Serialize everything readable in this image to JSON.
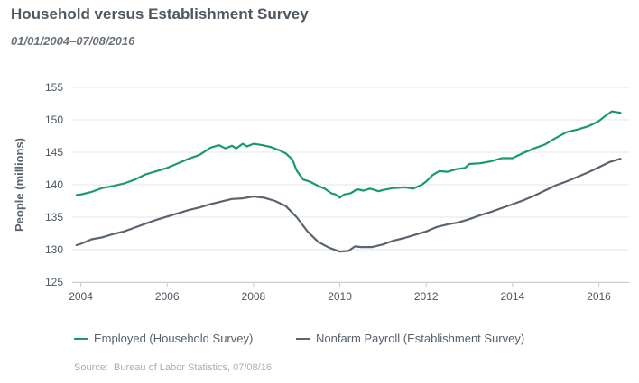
{
  "header": {
    "title": "Household versus Establishment Survey",
    "subtitle": "01/01/2004–07/08/2016"
  },
  "source": {
    "label": "Source:",
    "text": "Bureau of Labor Statistics, 07/08/16"
  },
  "chart_data": {
    "type": "line",
    "title": "Household versus Establishment Survey",
    "subtitle": "01/01/2004–07/08/2016",
    "ylabel": "People (millions)",
    "xlabel": "",
    "xlim": [
      2003.8,
      2016.7
    ],
    "ylim": [
      125,
      155
    ],
    "x_ticks": [
      2004,
      2006,
      2008,
      2010,
      2012,
      2014,
      2016
    ],
    "y_ticks": [
      125,
      130,
      135,
      140,
      145,
      150,
      155
    ],
    "grid": "horizontal",
    "legend_position": "bottom",
    "series": [
      {
        "name": "Employed (Household Survey)",
        "color": "#1a9a6c",
        "points": [
          [
            2003.9,
            138.4
          ],
          [
            2004.0,
            138.5
          ],
          [
            2004.25,
            138.9
          ],
          [
            2004.5,
            139.5
          ],
          [
            2004.75,
            139.8
          ],
          [
            2005.0,
            140.2
          ],
          [
            2005.25,
            140.8
          ],
          [
            2005.5,
            141.6
          ],
          [
            2005.75,
            142.1
          ],
          [
            2006.0,
            142.6
          ],
          [
            2006.25,
            143.3
          ],
          [
            2006.5,
            144.0
          ],
          [
            2006.75,
            144.6
          ],
          [
            2007.0,
            145.7
          ],
          [
            2007.2,
            146.1
          ],
          [
            2007.35,
            145.6
          ],
          [
            2007.5,
            146.0
          ],
          [
            2007.6,
            145.6
          ],
          [
            2007.75,
            146.3
          ],
          [
            2007.85,
            145.9
          ],
          [
            2008.0,
            146.3
          ],
          [
            2008.2,
            146.1
          ],
          [
            2008.4,
            145.8
          ],
          [
            2008.6,
            145.3
          ],
          [
            2008.75,
            144.8
          ],
          [
            2008.9,
            143.9
          ],
          [
            2009.0,
            142.2
          ],
          [
            2009.15,
            140.8
          ],
          [
            2009.3,
            140.5
          ],
          [
            2009.5,
            139.8
          ],
          [
            2009.65,
            139.4
          ],
          [
            2009.8,
            138.7
          ],
          [
            2009.9,
            138.5
          ],
          [
            2010.0,
            138.0
          ],
          [
            2010.1,
            138.5
          ],
          [
            2010.25,
            138.7
          ],
          [
            2010.4,
            139.3
          ],
          [
            2010.55,
            139.1
          ],
          [
            2010.7,
            139.4
          ],
          [
            2010.9,
            139.0
          ],
          [
            2011.0,
            139.2
          ],
          [
            2011.25,
            139.5
          ],
          [
            2011.5,
            139.6
          ],
          [
            2011.7,
            139.4
          ],
          [
            2011.9,
            140.0
          ],
          [
            2012.0,
            140.5
          ],
          [
            2012.15,
            141.5
          ],
          [
            2012.3,
            142.1
          ],
          [
            2012.5,
            142.0
          ],
          [
            2012.7,
            142.4
          ],
          [
            2012.9,
            142.6
          ],
          [
            2013.0,
            143.2
          ],
          [
            2013.25,
            143.3
          ],
          [
            2013.5,
            143.6
          ],
          [
            2013.75,
            144.1
          ],
          [
            2014.0,
            144.1
          ],
          [
            2014.25,
            144.9
          ],
          [
            2014.5,
            145.6
          ],
          [
            2014.75,
            146.2
          ],
          [
            2015.0,
            147.2
          ],
          [
            2015.25,
            148.1
          ],
          [
            2015.5,
            148.5
          ],
          [
            2015.75,
            149.0
          ],
          [
            2016.0,
            149.8
          ],
          [
            2016.15,
            150.6
          ],
          [
            2016.3,
            151.3
          ],
          [
            2016.4,
            151.2
          ],
          [
            2016.5,
            151.1
          ]
        ]
      },
      {
        "name": "Nonfarm Payroll (Establishment Survey)",
        "color": "#5a646e",
        "points": [
          [
            2003.9,
            130.7
          ],
          [
            2004.0,
            130.9
          ],
          [
            2004.25,
            131.6
          ],
          [
            2004.5,
            131.9
          ],
          [
            2004.75,
            132.4
          ],
          [
            2005.0,
            132.8
          ],
          [
            2005.25,
            133.4
          ],
          [
            2005.5,
            134.0
          ],
          [
            2005.75,
            134.6
          ],
          [
            2006.0,
            135.1
          ],
          [
            2006.25,
            135.6
          ],
          [
            2006.5,
            136.1
          ],
          [
            2006.75,
            136.5
          ],
          [
            2007.0,
            137.0
          ],
          [
            2007.25,
            137.4
          ],
          [
            2007.5,
            137.8
          ],
          [
            2007.75,
            137.9
          ],
          [
            2008.0,
            138.2
          ],
          [
            2008.25,
            138.0
          ],
          [
            2008.5,
            137.5
          ],
          [
            2008.75,
            136.7
          ],
          [
            2009.0,
            135.0
          ],
          [
            2009.25,
            132.8
          ],
          [
            2009.5,
            131.2
          ],
          [
            2009.75,
            130.3
          ],
          [
            2010.0,
            129.7
          ],
          [
            2010.2,
            129.8
          ],
          [
            2010.35,
            130.5
          ],
          [
            2010.5,
            130.4
          ],
          [
            2010.75,
            130.4
          ],
          [
            2011.0,
            130.8
          ],
          [
            2011.25,
            131.4
          ],
          [
            2011.5,
            131.8
          ],
          [
            2011.75,
            132.3
          ],
          [
            2012.0,
            132.8
          ],
          [
            2012.25,
            133.5
          ],
          [
            2012.5,
            133.9
          ],
          [
            2012.75,
            134.2
          ],
          [
            2013.0,
            134.7
          ],
          [
            2013.25,
            135.3
          ],
          [
            2013.5,
            135.8
          ],
          [
            2013.75,
            136.4
          ],
          [
            2014.0,
            137.0
          ],
          [
            2014.25,
            137.6
          ],
          [
            2014.5,
            138.3
          ],
          [
            2014.75,
            139.1
          ],
          [
            2015.0,
            139.9
          ],
          [
            2015.25,
            140.5
          ],
          [
            2015.5,
            141.2
          ],
          [
            2015.75,
            141.9
          ],
          [
            2016.0,
            142.7
          ],
          [
            2016.25,
            143.5
          ],
          [
            2016.5,
            144.0
          ]
        ]
      }
    ]
  }
}
